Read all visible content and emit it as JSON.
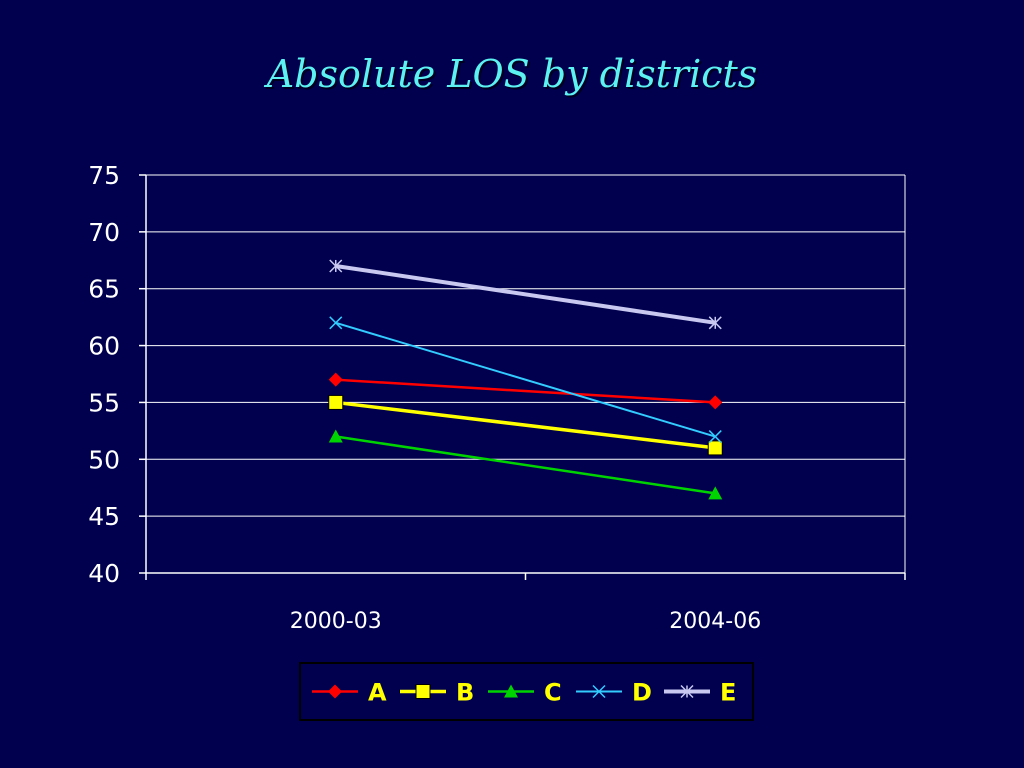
{
  "title": "Absolute LOS by districts",
  "colors": {
    "background": "#00004f",
    "title": "#5cf2f2",
    "axis": "#ffffff",
    "grid": "#ffffff",
    "legend_text": "#ffff00"
  },
  "chart_data": {
    "type": "line",
    "title": "Absolute LOS by districts",
    "xlabel": "",
    "ylabel": "",
    "categories": [
      "2000-03",
      "2004-06"
    ],
    "ylim": [
      40,
      75
    ],
    "yticks": [
      "75",
      "70",
      "65",
      "60",
      "55",
      "50",
      "45",
      "40"
    ],
    "grid": true,
    "legend_position": "bottom",
    "series": [
      {
        "name": "A",
        "values": [
          57,
          55
        ],
        "color": "#ff0000",
        "marker": "diamond"
      },
      {
        "name": "B",
        "values": [
          55,
          51
        ],
        "color": "#ffff00",
        "marker": "square"
      },
      {
        "name": "C",
        "values": [
          52,
          47
        ],
        "color": "#00d400",
        "marker": "triangle"
      },
      {
        "name": "D",
        "values": [
          62,
          52
        ],
        "color": "#33ccff",
        "marker": "x"
      },
      {
        "name": "E",
        "values": [
          67,
          62
        ],
        "color": "#c8c8f0",
        "marker": "star"
      }
    ]
  }
}
